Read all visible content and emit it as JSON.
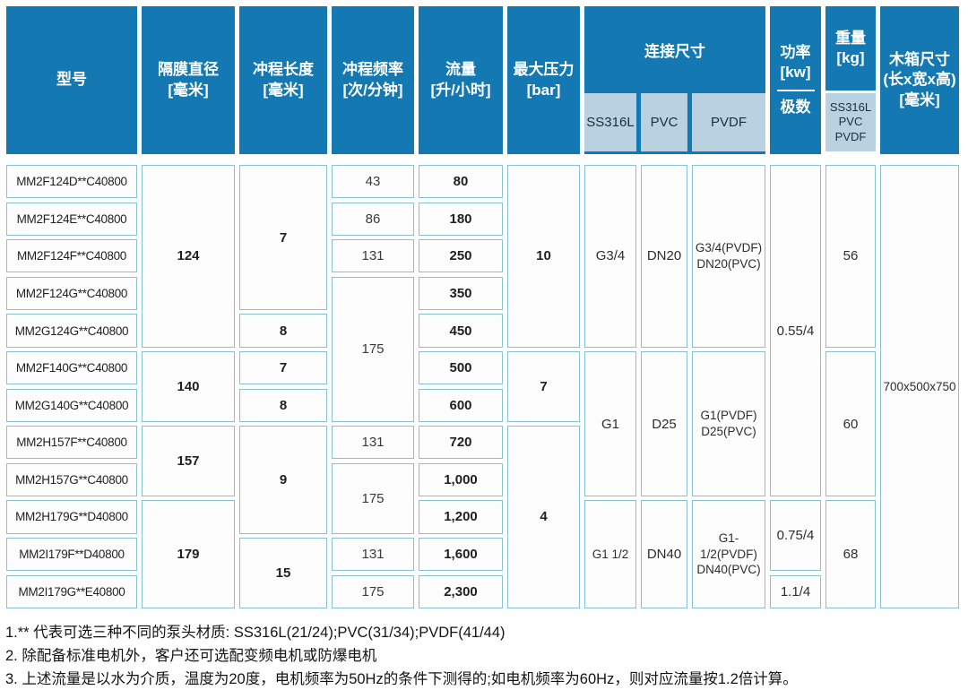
{
  "colors": {
    "header_blue": "#1478b2",
    "subheader_bg": "#bad1e2",
    "cell_border": "#8ac0d4"
  },
  "header": {
    "model": "型号",
    "diameter": {
      "title": "隔膜直径",
      "unit": "[毫米]"
    },
    "stroke": {
      "title": "冲程长度",
      "unit": "[毫米]"
    },
    "frequency": {
      "title": "冲程频率",
      "unit": "[次/分钟]"
    },
    "flow": {
      "title": "流量",
      "unit": "[升/小时]"
    },
    "pressure": {
      "title": "最大压力",
      "unit": "[bar]"
    },
    "connection": {
      "label": "连接尺寸",
      "subs": [
        "SS316L",
        "PVC",
        "PVDF"
      ]
    },
    "power": {
      "title": "功率",
      "unit": "[kw]",
      "sub": "极数"
    },
    "weight": {
      "title": "重量",
      "unit": "[kg]",
      "materials": [
        "SS316L",
        "PVC",
        "PVDF"
      ]
    },
    "box": {
      "title": "木箱尺寸",
      "dims": "(长x宽x高)",
      "unit": "[毫米]"
    }
  },
  "body": {
    "models": [
      "MM2F124D**C40800",
      "MM2F124E**C40800",
      "MM2F124F**C40800",
      "MM2F124G**C40800",
      "MM2G124G**C40800",
      "MM2F140G**C40800",
      "MM2G140G**C40800",
      "MM2H157F**C40800",
      "MM2H157G**C40800",
      "MM2H179G**D40800",
      "MM2I179F**D40800",
      "MM2I179G**E40800"
    ],
    "diameter": [
      "124",
      "140",
      "157",
      "179"
    ],
    "stroke": [
      "7",
      "8",
      "7",
      "8",
      "9",
      "15"
    ],
    "frequency": [
      "43",
      "86",
      "131",
      "175",
      "131",
      "175",
      "131",
      "175"
    ],
    "flow": [
      "80",
      "180",
      "250",
      "350",
      "450",
      "500",
      "600",
      "720",
      "1,000",
      "1,200",
      "1,600",
      "2,300"
    ],
    "pressure": [
      "10",
      "7",
      "4"
    ],
    "conn_ss316l": [
      "G3/4",
      "G1",
      "G1 1/2"
    ],
    "conn_pvc": [
      "DN20",
      "D25",
      "DN40"
    ],
    "conn_pvdf": [
      [
        "G3/4(PVDF)",
        "DN20(PVC)"
      ],
      [
        "G1(PVDF)",
        "D25(PVC)"
      ],
      [
        "G1-1/2(PVDF)",
        "DN40(PVC)"
      ]
    ],
    "power": [
      "0.55/4",
      "0.75/4",
      "1.1/4"
    ],
    "weight": [
      "56",
      "60",
      "68"
    ],
    "box": "700x500x750"
  },
  "notes": [
    "1.** 代表可选三种不同的泵头材质: SS316L(21/24);PVC(31/34);PVDF(41/44)",
    "2. 除配备标准电机外，客户还可选配变频电机或防爆电机",
    "3. 上述流量是以水为介质，温度为20度，电机频率为50Hz的条件下测得的;如电机频率为60Hz，则对应流量按1.2倍计算。"
  ]
}
